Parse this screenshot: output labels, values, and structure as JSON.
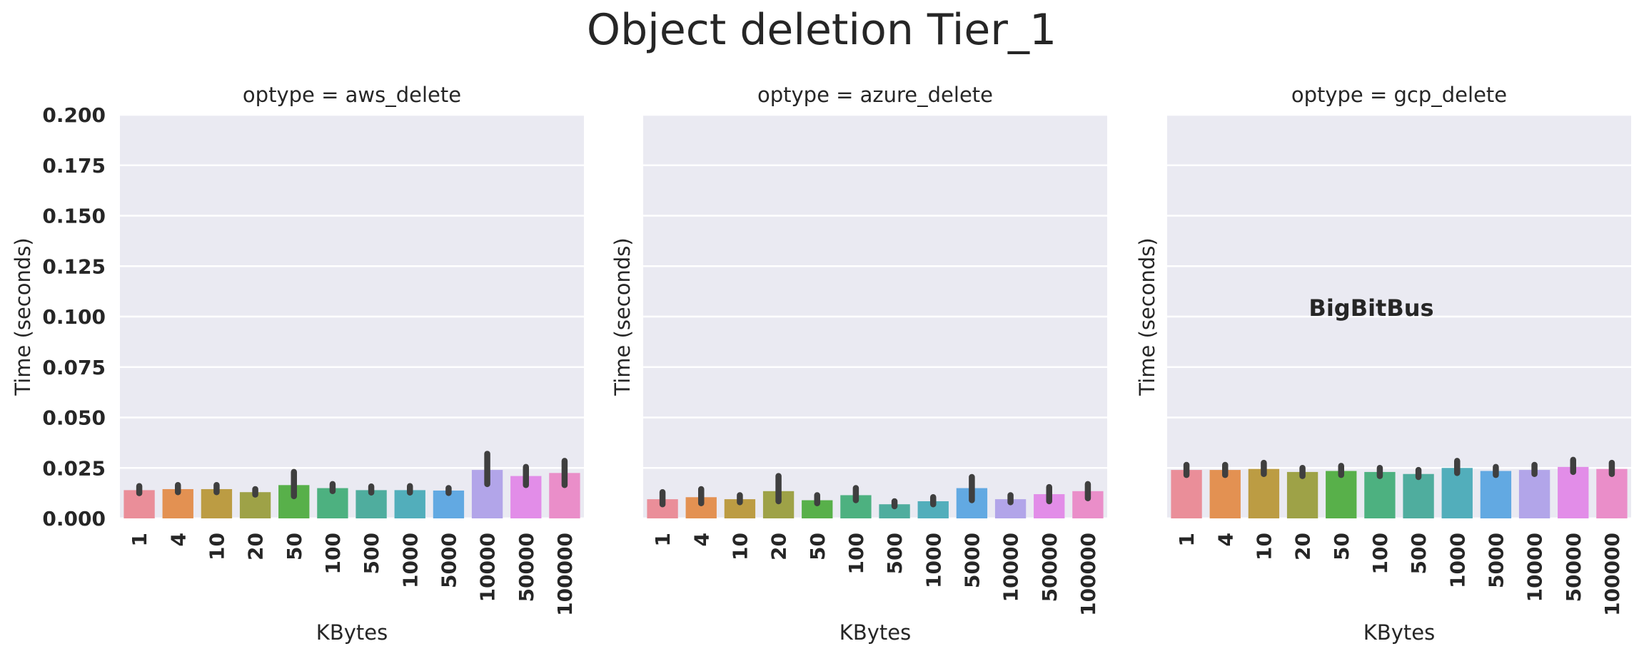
{
  "title": "Object deletion Tier_1",
  "chart_data": {
    "type": "bar",
    "title": "Object deletion Tier_1",
    "categories": [
      "1",
      "4",
      "10",
      "20",
      "50",
      "100",
      "500",
      "1000",
      "5000",
      "10000",
      "50000",
      "100000"
    ],
    "xlabel": "KBytes",
    "ylabel": "Time (seconds)",
    "ylim": [
      0,
      0.2
    ],
    "yticks": [
      "0.000",
      "0.025",
      "0.050",
      "0.075",
      "0.100",
      "0.125",
      "0.150",
      "0.175",
      "0.200"
    ],
    "grid": true,
    "error_bars": true,
    "palette": [
      "#ea8e99",
      "#e39152",
      "#bc9c43",
      "#9ea247",
      "#58b04a",
      "#4db180",
      "#4fad9e",
      "#52aebb",
      "#62a9e2",
      "#b2a5e9",
      "#e28de8",
      "#ea8ec9"
    ],
    "panels": [
      {
        "title": "optype = aws_delete",
        "values": [
          0.014,
          0.0145,
          0.0145,
          0.013,
          0.0165,
          0.015,
          0.014,
          0.014,
          0.0138,
          0.024,
          0.021,
          0.0225
        ],
        "err_low": [
          0.0125,
          0.013,
          0.013,
          0.0118,
          0.011,
          0.0135,
          0.0128,
          0.0128,
          0.0126,
          0.017,
          0.0165,
          0.0165
        ],
        "err_high": [
          0.016,
          0.0165,
          0.0165,
          0.0145,
          0.023,
          0.017,
          0.0158,
          0.016,
          0.015,
          0.032,
          0.0255,
          0.0285
        ]
      },
      {
        "title": "optype = azure_delete",
        "values": [
          0.0095,
          0.0105,
          0.0095,
          0.0135,
          0.009,
          0.0115,
          0.007,
          0.0085,
          0.015,
          0.0095,
          0.012,
          0.0135
        ],
        "err_low": [
          0.007,
          0.0075,
          0.008,
          0.0085,
          0.0075,
          0.009,
          0.006,
          0.007,
          0.009,
          0.008,
          0.0085,
          0.01
        ],
        "err_high": [
          0.013,
          0.0145,
          0.0115,
          0.021,
          0.0115,
          0.015,
          0.0085,
          0.0105,
          0.0205,
          0.0115,
          0.0155,
          0.017
        ]
      },
      {
        "title": "optype = gcp_delete",
        "values": [
          0.024,
          0.024,
          0.0245,
          0.023,
          0.0235,
          0.023,
          0.022,
          0.025,
          0.0235,
          0.024,
          0.0255,
          0.0245
        ],
        "err_low": [
          0.0215,
          0.0215,
          0.022,
          0.021,
          0.0215,
          0.021,
          0.0205,
          0.0225,
          0.0215,
          0.022,
          0.023,
          0.022
        ],
        "err_high": [
          0.0265,
          0.0265,
          0.0275,
          0.025,
          0.026,
          0.025,
          0.024,
          0.0285,
          0.0255,
          0.0265,
          0.029,
          0.0275
        ],
        "annotation": "BigBitBus"
      }
    ]
  }
}
